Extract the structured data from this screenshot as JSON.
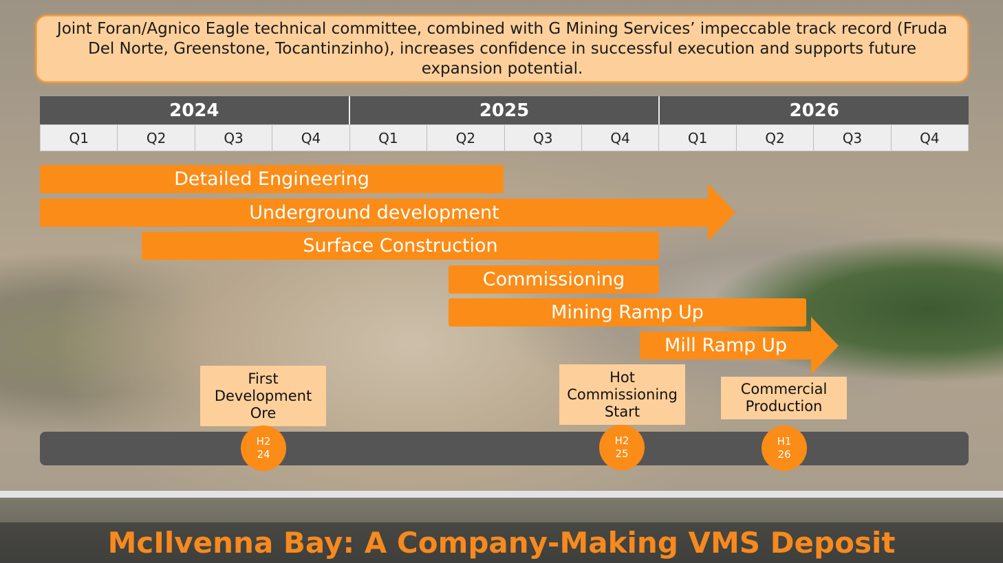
{
  "callout": "Joint Foran/Agnico Eagle technical committee, combined with G Mining Services’ impeccable track record (Fruda Del Norte, Greenstone, Tocantinzinho), increases confidence in successful execution and supports future expansion potential.",
  "timeline": {
    "years": [
      "2024",
      "2025",
      "2026"
    ],
    "quarters": [
      "Q1",
      "Q2",
      "Q3",
      "Q4",
      "Q1",
      "Q2",
      "Q3",
      "Q4",
      "Q1",
      "Q2",
      "Q3",
      "Q4"
    ],
    "activities": [
      "Detailed Engineering",
      "Underground development",
      "Surface Construction",
      "Commissioning",
      "Mining Ramp Up",
      "Mill Ramp Up"
    ],
    "milestones": [
      {
        "label": "First Development Ore",
        "date_line1": "H2",
        "date_line2": "24"
      },
      {
        "label": "Hot Commissioning Start",
        "date_line1": "H2",
        "date_line2": "25"
      },
      {
        "label": "Commercial Production",
        "date_line1": "H1",
        "date_line2": "26"
      }
    ]
  },
  "colors": {
    "accent": "#fb8c17",
    "milestone_box": "#fdcf9a",
    "header": "#555555"
  },
  "footer_title": "McIlvenna Bay: A Company-Making VMS Deposit"
}
